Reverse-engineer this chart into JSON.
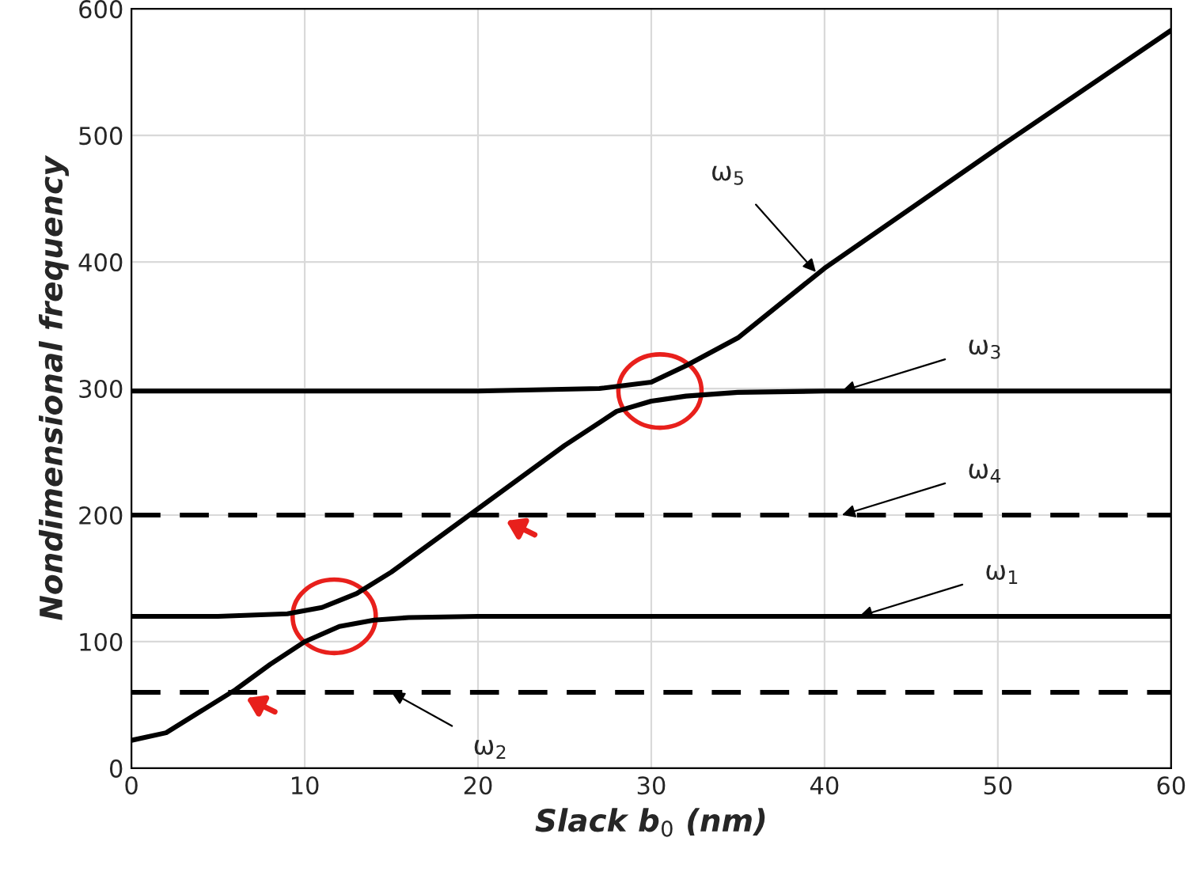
{
  "chart_data": {
    "type": "line",
    "xlabel": "Slack b$_{0}$ (nm)",
    "ylabel": "Nondimensional frequency",
    "xlim": [
      0,
      60
    ],
    "ylim": [
      0,
      600
    ],
    "xticks": [
      0,
      10,
      20,
      30,
      40,
      50,
      60
    ],
    "yticks": [
      0,
      100,
      200,
      300,
      400,
      500,
      600
    ],
    "grid": true,
    "legend": false,
    "series": [
      {
        "color": "#000000",
        "line_style": "solid",
        "x": [
          0,
          2,
          4,
          6,
          8,
          10,
          12,
          14,
          16,
          20,
          60
        ],
        "values": [
          22,
          28,
          45,
          62,
          82,
          100,
          112,
          117,
          119,
          120,
          120
        ]
      },
      {
        "color": "#000000",
        "line_style": "solid",
        "x": [
          0,
          5,
          9,
          11,
          13,
          15,
          20,
          25,
          28,
          30,
          32,
          35,
          40,
          60
        ],
        "values": [
          120,
          120,
          122,
          127,
          138,
          155,
          205,
          255,
          282,
          290,
          294,
          297,
          298,
          298
        ]
      },
      {
        "color": "#000000",
        "line_style": "solid",
        "x": [
          0,
          20,
          27,
          30,
          32,
          35,
          40,
          50,
          60
        ],
        "values": [
          298,
          298,
          300,
          305,
          318,
          340,
          395,
          490,
          583
        ]
      },
      {
        "color": "#000000",
        "line_style": "dashed",
        "x": [
          0,
          60
        ],
        "values": [
          200,
          200
        ]
      },
      {
        "color": "#000000",
        "line_style": "dashed",
        "x": [
          0,
          60
        ],
        "values": [
          60,
          60
        ]
      }
    ],
    "annotations": [
      {
        "text": "ω$_{5}$",
        "x": 39.5,
        "y": 392
      },
      {
        "text": "ω$_{3}$",
        "x": 41,
        "y": 298
      },
      {
        "text": "ω$_{4}$",
        "x": 41,
        "y": 200
      },
      {
        "text": "ω$_{1}$",
        "x": 42,
        "y": 120
      },
      {
        "text": "ω$_{2}$",
        "x": 15,
        "y": 60
      }
    ]
  }
}
